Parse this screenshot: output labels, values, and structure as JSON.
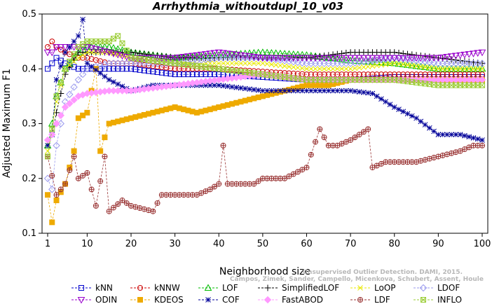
{
  "chart_data": {
    "type": "line",
    "title": "Arrhythmia_withoutdupl_10_v03",
    "xlabel": "Neighborhood size",
    "ylabel": "Adjusted Maximum F1",
    "xlim": [
      1,
      100
    ],
    "ylim": [
      0.1,
      0.5
    ],
    "xticks": [
      1,
      10,
      20,
      30,
      40,
      50,
      60,
      70,
      80,
      90,
      100
    ],
    "yticks": [
      0.1,
      0.2,
      0.3,
      0.4,
      0.5
    ],
    "grid": false,
    "legend_position": "bottom",
    "watermark": [
      "Campos, Zimek, Sander, Campello, Micenkova, Schubert, Assent, Houle",
      "Unsupervised Outlier Detection. DAMI, 2015."
    ],
    "series": [
      {
        "name": "kNN",
        "color": "#0000cc",
        "marker": "square",
        "points": [
          [
            1,
            0.4
          ],
          [
            2,
            0.41
          ],
          [
            3,
            0.42
          ],
          [
            5,
            0.41
          ],
          [
            8,
            0.4
          ],
          [
            10,
            0.4
          ],
          [
            15,
            0.4
          ],
          [
            20,
            0.4
          ],
          [
            30,
            0.39
          ],
          [
            40,
            0.39
          ],
          [
            50,
            0.385
          ],
          [
            60,
            0.38
          ],
          [
            70,
            0.38
          ],
          [
            80,
            0.385
          ],
          [
            90,
            0.385
          ],
          [
            100,
            0.385
          ]
        ]
      },
      {
        "name": "kNNW",
        "color": "#cc0000",
        "marker": "circle",
        "points": [
          [
            1,
            0.44
          ],
          [
            2,
            0.45
          ],
          [
            3,
            0.44
          ],
          [
            5,
            0.43
          ],
          [
            8,
            0.42
          ],
          [
            10,
            0.42
          ],
          [
            15,
            0.41
          ],
          [
            20,
            0.41
          ],
          [
            30,
            0.4
          ],
          [
            40,
            0.4
          ],
          [
            50,
            0.395
          ],
          [
            60,
            0.39
          ],
          [
            70,
            0.39
          ],
          [
            80,
            0.39
          ],
          [
            90,
            0.39
          ],
          [
            100,
            0.39
          ]
        ]
      },
      {
        "name": "LOF",
        "color": "#00bb00",
        "marker": "triangle-up",
        "points": [
          [
            1,
            0.26
          ],
          [
            2,
            0.3
          ],
          [
            3,
            0.35
          ],
          [
            5,
            0.4
          ],
          [
            8,
            0.43
          ],
          [
            10,
            0.44
          ],
          [
            15,
            0.44
          ],
          [
            20,
            0.43
          ],
          [
            30,
            0.42
          ],
          [
            40,
            0.425
          ],
          [
            50,
            0.43
          ],
          [
            60,
            0.425
          ],
          [
            70,
            0.415
          ],
          [
            80,
            0.41
          ],
          [
            90,
            0.4
          ],
          [
            100,
            0.4
          ]
        ]
      },
      {
        "name": "SimplifiedLOF",
        "color": "#000000",
        "marker": "plus",
        "points": [
          [
            1,
            0.27
          ],
          [
            2,
            0.28
          ],
          [
            3,
            0.32
          ],
          [
            5,
            0.39
          ],
          [
            8,
            0.43
          ],
          [
            10,
            0.43
          ],
          [
            15,
            0.43
          ],
          [
            20,
            0.43
          ],
          [
            30,
            0.42
          ],
          [
            40,
            0.42
          ],
          [
            50,
            0.42
          ],
          [
            60,
            0.42
          ],
          [
            70,
            0.43
          ],
          [
            80,
            0.43
          ],
          [
            90,
            0.42
          ],
          [
            100,
            0.41
          ]
        ]
      },
      {
        "name": "LoOP",
        "color": "#e8e800",
        "marker": "x",
        "points": [
          [
            1,
            0.25
          ],
          [
            2,
            0.29
          ],
          [
            3,
            0.34
          ],
          [
            5,
            0.4
          ],
          [
            8,
            0.42
          ],
          [
            10,
            0.43
          ],
          [
            15,
            0.43
          ],
          [
            20,
            0.42
          ],
          [
            30,
            0.41
          ],
          [
            40,
            0.41
          ],
          [
            50,
            0.41
          ],
          [
            60,
            0.4
          ],
          [
            70,
            0.4
          ],
          [
            80,
            0.41
          ],
          [
            90,
            0.4
          ],
          [
            100,
            0.4
          ]
        ]
      },
      {
        "name": "LDOF",
        "color": "#9999ee",
        "marker": "diamond",
        "points": [
          [
            1,
            0.2
          ],
          [
            2,
            0.18
          ],
          [
            3,
            0.26
          ],
          [
            5,
            0.34
          ],
          [
            8,
            0.38
          ],
          [
            10,
            0.4
          ],
          [
            15,
            0.41
          ],
          [
            20,
            0.41
          ],
          [
            30,
            0.41
          ],
          [
            40,
            0.42
          ],
          [
            50,
            0.42
          ],
          [
            60,
            0.41
          ],
          [
            70,
            0.41
          ],
          [
            80,
            0.42
          ],
          [
            90,
            0.41
          ],
          [
            100,
            0.41
          ]
        ]
      },
      {
        "name": "ODIN",
        "color": "#9900cc",
        "marker": "triangle-down",
        "points": [
          [
            1,
            0.43
          ],
          [
            2,
            0.43
          ],
          [
            3,
            0.44
          ],
          [
            5,
            0.44
          ],
          [
            8,
            0.44
          ],
          [
            10,
            0.44
          ],
          [
            15,
            0.43
          ],
          [
            20,
            0.42
          ],
          [
            30,
            0.42
          ],
          [
            40,
            0.43
          ],
          [
            50,
            0.42
          ],
          [
            60,
            0.42
          ],
          [
            70,
            0.42
          ],
          [
            80,
            0.42
          ],
          [
            90,
            0.42
          ],
          [
            100,
            0.43
          ]
        ]
      },
      {
        "name": "KDEOS",
        "color": "#eeaa00",
        "marker": "square-filled",
        "points": [
          [
            1,
            0.17
          ],
          [
            2,
            0.12
          ],
          [
            3,
            0.16
          ],
          [
            5,
            0.19
          ],
          [
            7,
            0.25
          ],
          [
            8,
            0.31
          ],
          [
            10,
            0.32
          ],
          [
            12,
            0.4
          ],
          [
            13,
            0.25
          ],
          [
            15,
            0.3
          ],
          [
            20,
            0.31
          ],
          [
            25,
            0.32
          ],
          [
            30,
            0.33
          ],
          [
            35,
            0.32
          ],
          [
            40,
            0.33
          ],
          [
            45,
            0.34
          ],
          [
            50,
            0.35
          ],
          [
            55,
            0.36
          ],
          [
            60,
            0.37
          ],
          [
            65,
            0.37
          ],
          [
            70,
            0.38
          ],
          [
            80,
            0.38
          ],
          [
            90,
            0.38
          ],
          [
            100,
            0.38
          ]
        ]
      },
      {
        "name": "COF",
        "color": "#000099",
        "marker": "asterisk",
        "points": [
          [
            1,
            0.26
          ],
          [
            2,
            0.28
          ],
          [
            3,
            0.38
          ],
          [
            5,
            0.43
          ],
          [
            8,
            0.46
          ],
          [
            9,
            0.49
          ],
          [
            10,
            0.41
          ],
          [
            15,
            0.38
          ],
          [
            20,
            0.36
          ],
          [
            25,
            0.37
          ],
          [
            30,
            0.37
          ],
          [
            40,
            0.37
          ],
          [
            50,
            0.36
          ],
          [
            60,
            0.36
          ],
          [
            70,
            0.36
          ],
          [
            75,
            0.355
          ],
          [
            80,
            0.33
          ],
          [
            85,
            0.31
          ],
          [
            90,
            0.28
          ],
          [
            95,
            0.28
          ],
          [
            100,
            0.27
          ]
        ]
      },
      {
        "name": "FastABOD",
        "color": "#ff99ff",
        "marker": "diamond-filled",
        "points": [
          [
            1,
            0.27
          ],
          [
            2,
            0.28
          ],
          [
            3,
            0.3
          ],
          [
            5,
            0.33
          ],
          [
            8,
            0.35
          ],
          [
            10,
            0.355
          ],
          [
            15,
            0.36
          ],
          [
            20,
            0.36
          ],
          [
            30,
            0.37
          ],
          [
            40,
            0.38
          ],
          [
            50,
            0.39
          ],
          [
            60,
            0.38
          ],
          [
            70,
            0.38
          ],
          [
            80,
            0.38
          ],
          [
            90,
            0.38
          ],
          [
            100,
            0.38
          ]
        ]
      },
      {
        "name": "LDF",
        "color": "#993333",
        "marker": "circle-cross",
        "points": [
          [
            1,
            0.24
          ],
          [
            3,
            0.17
          ],
          [
            5,
            0.19
          ],
          [
            7,
            0.24
          ],
          [
            8,
            0.2
          ],
          [
            10,
            0.21
          ],
          [
            12,
            0.15
          ],
          [
            14,
            0.24
          ],
          [
            15,
            0.14
          ],
          [
            18,
            0.16
          ],
          [
            20,
            0.15
          ],
          [
            25,
            0.14
          ],
          [
            27,
            0.17
          ],
          [
            30,
            0.17
          ],
          [
            35,
            0.17
          ],
          [
            38,
            0.18
          ],
          [
            40,
            0.19
          ],
          [
            41,
            0.26
          ],
          [
            42,
            0.19
          ],
          [
            45,
            0.19
          ],
          [
            48,
            0.19
          ],
          [
            50,
            0.2
          ],
          [
            55,
            0.2
          ],
          [
            60,
            0.22
          ],
          [
            63,
            0.29
          ],
          [
            65,
            0.26
          ],
          [
            67,
            0.26
          ],
          [
            70,
            0.27
          ],
          [
            74,
            0.29
          ],
          [
            75,
            0.22
          ],
          [
            78,
            0.23
          ],
          [
            85,
            0.23
          ],
          [
            90,
            0.24
          ],
          [
            95,
            0.25
          ],
          [
            98,
            0.26
          ],
          [
            100,
            0.26
          ]
        ]
      },
      {
        "name": "INFLO",
        "color": "#99cc33",
        "marker": "star",
        "points": [
          [
            1,
            0.24
          ],
          [
            2,
            0.29
          ],
          [
            3,
            0.35
          ],
          [
            5,
            0.4
          ],
          [
            8,
            0.44
          ],
          [
            10,
            0.45
          ],
          [
            15,
            0.45
          ],
          [
            17,
            0.46
          ],
          [
            20,
            0.42
          ],
          [
            30,
            0.41
          ],
          [
            40,
            0.4
          ],
          [
            50,
            0.39
          ],
          [
            60,
            0.38
          ],
          [
            70,
            0.38
          ],
          [
            80,
            0.38
          ],
          [
            90,
            0.37
          ],
          [
            100,
            0.37
          ]
        ]
      }
    ]
  }
}
